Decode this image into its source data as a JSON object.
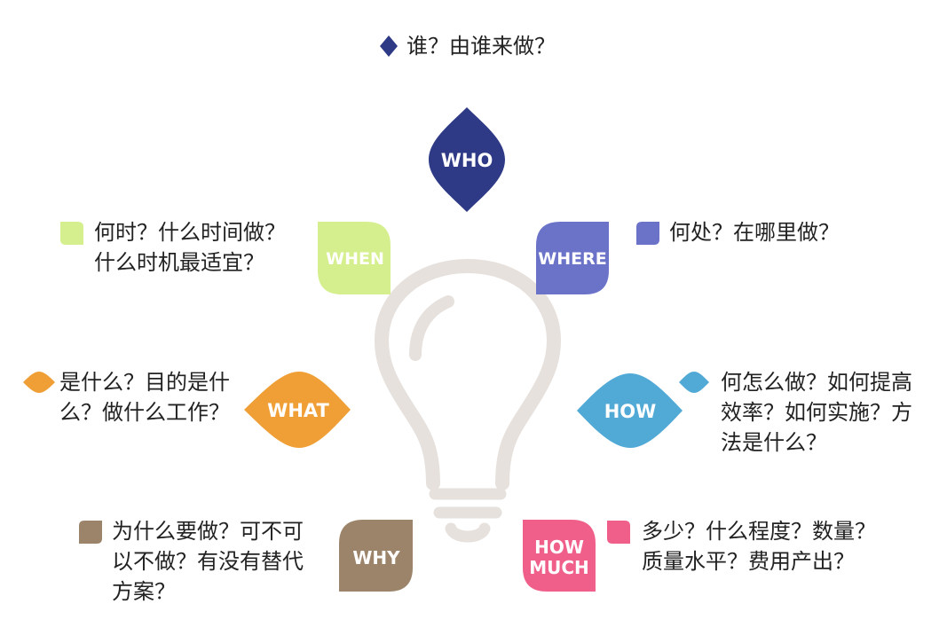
{
  "colors": {
    "who": "#2e3a86",
    "when": "#d6ef8e",
    "where": "#6b73c9",
    "what": "#ef9f35",
    "how": "#51a9d6",
    "why": "#9c846a",
    "howmuch": "#ef5f8a",
    "bulb": "#e6e1dd",
    "text": "#222222"
  },
  "items": {
    "who": {
      "label": "WHO",
      "icon": "diamond-icon",
      "lines": [
        "谁？由谁来做？"
      ]
    },
    "when": {
      "label": "WHEN",
      "icon": "leaf-icon",
      "lines": [
        "何时？什么时间做？",
        "什么时机最适宜？"
      ]
    },
    "where": {
      "label": "WHERE",
      "icon": "leaf-icon",
      "lines": [
        "何处？在哪里做？"
      ]
    },
    "what": {
      "label": "WHAT",
      "icon": "lens-icon",
      "lines": [
        "是什么？目的是什",
        "么？做什么工作？"
      ]
    },
    "how": {
      "label": "HOW",
      "icon": "lens-icon",
      "lines": [
        "何怎么做？如何提高",
        "效率？如何实施？方",
        "法是什么？"
      ]
    },
    "why": {
      "label": "WHY",
      "icon": "leaf-icon",
      "lines": [
        "为什么要做？可不可",
        "以不做？有没有替代",
        "方案？"
      ]
    },
    "howmuch": {
      "label_lines": [
        "HOW",
        "MUCH"
      ],
      "icon": "leaf-icon",
      "lines": [
        "多少？什么程度？数量？",
        "质量水平？费用产出？"
      ]
    }
  },
  "center_icon": "lightbulb-icon"
}
